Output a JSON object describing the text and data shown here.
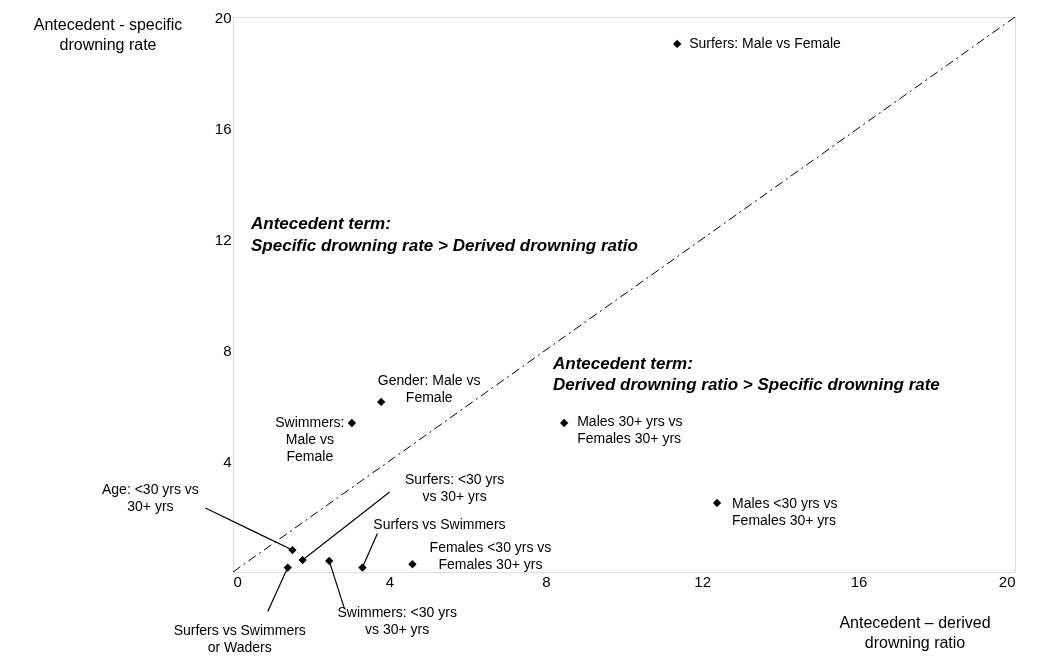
{
  "chart_data": {
    "type": "scatter",
    "xlabel": "Antecedent – derived drowning ratio",
    "ylabel": "Antecedent - specific drowning rate",
    "xlim": [
      0,
      20
    ],
    "ylim": [
      0,
      20
    ],
    "xticks": [
      0,
      4,
      8,
      12,
      16,
      20
    ],
    "yticks": [
      4,
      8,
      12,
      16,
      20
    ],
    "grid": false,
    "marker": "diamond",
    "series": [
      {
        "type": "scatter",
        "color": "#000000",
        "x": [
          11.36,
          3.79,
          3.04,
          8.47,
          12.38,
          4.59,
          3.31,
          2.46,
          1.52,
          1.78,
          1.4
        ],
        "values": [
          19.03,
          6.13,
          5.37,
          5.37,
          2.49,
          0.28,
          0.16,
          0.4,
          0.79,
          0.43,
          0.16
        ]
      },
      {
        "type": "line",
        "color": "#000000",
        "line_style": "dashed",
        "marker": "none",
        "x": [
          0,
          20
        ],
        "values": [
          0,
          20
        ]
      }
    ],
    "annotations": [
      {
        "text": "Surfers: Male vs Female",
        "x": 11.36,
        "y": 19.03
      },
      {
        "text": "Gender: Male vs Female",
        "x": 3.79,
        "y": 6.13
      },
      {
        "text": "Swimmers: Male vs Female",
        "x": 3.04,
        "y": 5.37
      },
      {
        "text": "Males 30+ yrs vs Females 30+ yrs",
        "x": 8.47,
        "y": 5.37
      },
      {
        "text": "Males <30 yrs vs Females 30+ yrs",
        "x": 12.38,
        "y": 2.49
      },
      {
        "text": "Females <30 yrs vs Females 30+ yrs",
        "x": 4.59,
        "y": 0.28
      },
      {
        "text": "Surfers vs Swimmers",
        "x": 3.31,
        "y": 0.16
      },
      {
        "text": "Swimmers: <30 yrs vs 30+ yrs",
        "x": 2.46,
        "y": 0.4
      },
      {
        "text": "Age: <30 yrs vs 30+ yrs",
        "x": 1.52,
        "y": 0.79
      },
      {
        "text": "Surfers: <30 yrs vs 30+ yrs",
        "x": 1.78,
        "y": 0.43
      },
      {
        "text": "Surfers vs Swimmers or Waders",
        "x": 1.4,
        "y": 0.16
      },
      "Antecedent term:",
      "Specific drowning rate > Derived drowning ratio",
      "Antecedent term:",
      "Derived drowning ratio > Specific drowning rate"
    ]
  }
}
